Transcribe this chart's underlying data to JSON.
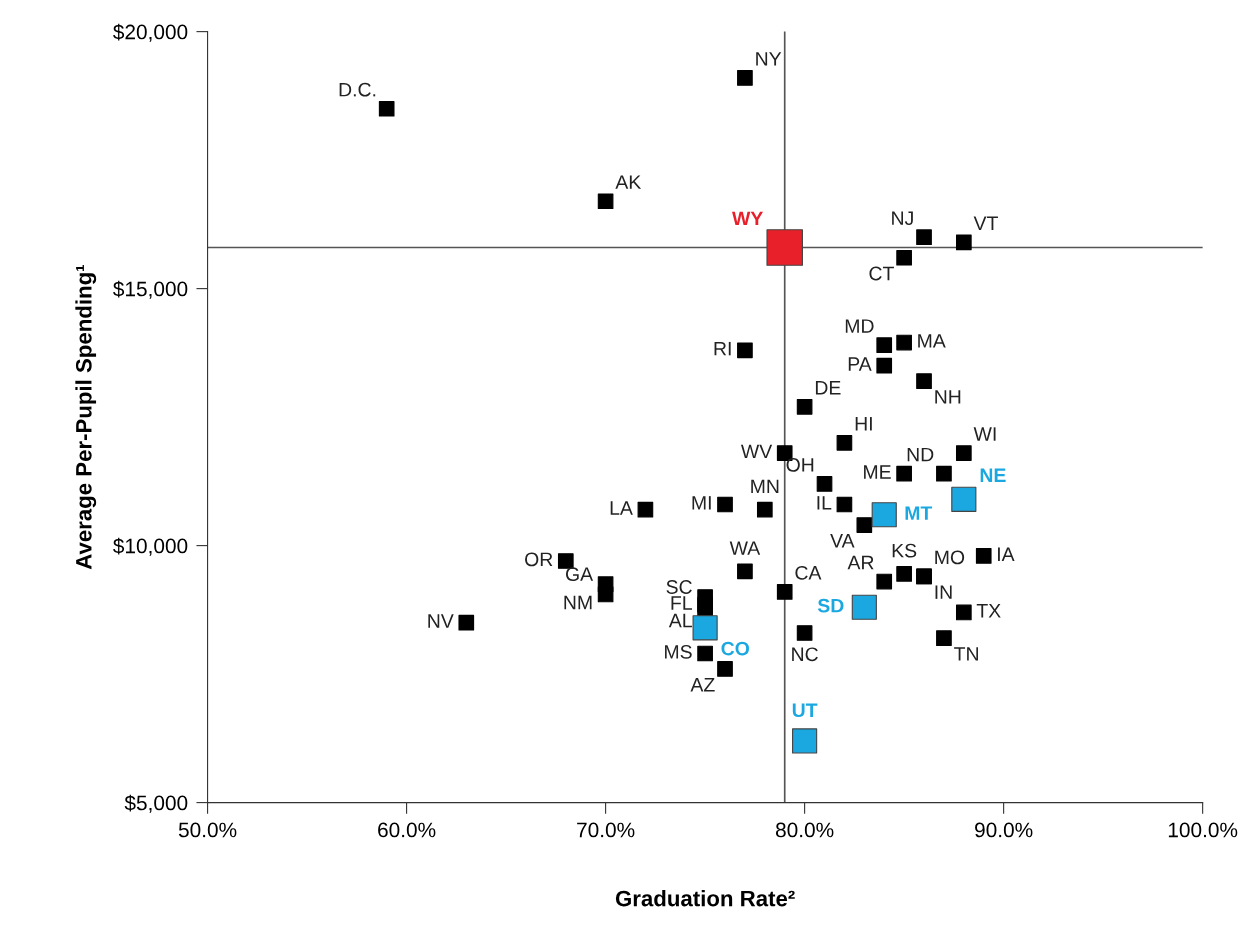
{
  "chart_data": {
    "type": "scatter",
    "xlabel": "Graduation Rate²",
    "ylabel": "Average Per-Pupil Spending¹",
    "xlim": [
      50,
      100
    ],
    "ylim": [
      5000,
      20000
    ],
    "xticks": [
      {
        "value": 50,
        "label": "50.0%"
      },
      {
        "value": 60,
        "label": "60.0%"
      },
      {
        "value": 70,
        "label": "70.0%"
      },
      {
        "value": 80,
        "label": "80.0%"
      },
      {
        "value": 90,
        "label": "90.0%"
      },
      {
        "value": 100,
        "label": "100.0%"
      }
    ],
    "yticks": [
      {
        "value": 5000,
        "label": "$5,000"
      },
      {
        "value": 10000,
        "label": "$10,000"
      },
      {
        "value": 15000,
        "label": "$15,000"
      },
      {
        "value": 20000,
        "label": "$20,000"
      }
    ],
    "grid": false,
    "marker": "square",
    "ref_lines": [
      {
        "axis": "x",
        "value": 79,
        "color": "#555555"
      },
      {
        "axis": "y",
        "value": 15800,
        "color": "#555555"
      }
    ],
    "series": [
      {
        "color": "#000000",
        "x": [
          59,
          77,
          70,
          86,
          88,
          85,
          77,
          84,
          85,
          84,
          86,
          80,
          82,
          79,
          88,
          85,
          87,
          81,
          76,
          78,
          72,
          82,
          83,
          68,
          89,
          77,
          85,
          84,
          86,
          86,
          70,
          70,
          79,
          75,
          75,
          75,
          88,
          63,
          80,
          87,
          75,
          76
        ],
        "values": [
          18500,
          19100,
          16700,
          16000,
          15900,
          15600,
          13800,
          13900,
          13950,
          13500,
          13200,
          12700,
          12000,
          11800,
          11800,
          11400,
          11400,
          11200,
          10800,
          10700,
          10700,
          10800,
          10400,
          9700,
          9800,
          9500,
          9450,
          9300,
          9400,
          9400,
          9250,
          9050,
          9100,
          9000,
          8850,
          8700,
          8700,
          8500,
          8300,
          8200,
          7900,
          7600
        ]
      },
      {
        "color": "#1ba8e0",
        "x": [
          84,
          88,
          83,
          75,
          80
        ],
        "values": [
          10600,
          10900,
          8800,
          8400,
          6200
        ]
      },
      {
        "color": "#e8202a",
        "x": [
          79
        ],
        "values": [
          15800
        ]
      }
    ],
    "annotations": [
      {
        "text": "D.C.",
        "x": 59,
        "y": 18500
      },
      {
        "text": "NY",
        "x": 77,
        "y": 19100
      },
      {
        "text": "AK",
        "x": 70,
        "y": 16700
      },
      {
        "text": "NJ",
        "x": 86,
        "y": 16000
      },
      {
        "text": "VT",
        "x": 88,
        "y": 15900
      },
      {
        "text": "CT",
        "x": 85,
        "y": 15600
      },
      {
        "text": "RI",
        "x": 77,
        "y": 13800
      },
      {
        "text": "MD",
        "x": 84,
        "y": 13900
      },
      {
        "text": "MA",
        "x": 85,
        "y": 13950
      },
      {
        "text": "PA",
        "x": 84,
        "y": 13500
      },
      {
        "text": "NH",
        "x": 86,
        "y": 13200
      },
      {
        "text": "DE",
        "x": 80,
        "y": 12700
      },
      {
        "text": "HI",
        "x": 82,
        "y": 12000
      },
      {
        "text": "WV",
        "x": 79,
        "y": 11800
      },
      {
        "text": "WI",
        "x": 88,
        "y": 11800
      },
      {
        "text": "ME",
        "x": 85,
        "y": 11400
      },
      {
        "text": "ND",
        "x": 87,
        "y": 11400
      },
      {
        "text": "OH",
        "x": 81,
        "y": 11200
      },
      {
        "text": "MI",
        "x": 76,
        "y": 10800
      },
      {
        "text": "MN",
        "x": 78,
        "y": 10700
      },
      {
        "text": "LA",
        "x": 72,
        "y": 10700
      },
      {
        "text": "IL",
        "x": 82,
        "y": 10800
      },
      {
        "text": "VA",
        "x": 83,
        "y": 10400
      },
      {
        "text": "OR",
        "x": 68,
        "y": 9700
      },
      {
        "text": "IA",
        "x": 89,
        "y": 9800
      },
      {
        "text": "WA",
        "x": 77,
        "y": 9500
      },
      {
        "text": "KS",
        "x": 85,
        "y": 9450
      },
      {
        "text": "AR",
        "x": 84,
        "y": 9300
      },
      {
        "text": "MO",
        "x": 86,
        "y": 9400
      },
      {
        "text": "IN",
        "x": 86,
        "y": 9400
      },
      {
        "text": "GA",
        "x": 70,
        "y": 9250
      },
      {
        "text": "NM",
        "x": 70,
        "y": 9050
      },
      {
        "text": "CA",
        "x": 79,
        "y": 9100
      },
      {
        "text": "SC",
        "x": 75,
        "y": 9000
      },
      {
        "text": "FL",
        "x": 75,
        "y": 8850
      },
      {
        "text": "AL",
        "x": 75,
        "y": 8700
      },
      {
        "text": "TX",
        "x": 88,
        "y": 8700
      },
      {
        "text": "NV",
        "x": 63,
        "y": 8500
      },
      {
        "text": "NC",
        "x": 80,
        "y": 8300
      },
      {
        "text": "TN",
        "x": 87,
        "y": 8200
      },
      {
        "text": "MS",
        "x": 75,
        "y": 7900
      },
      {
        "text": "AZ",
        "x": 76,
        "y": 7600
      },
      {
        "text": "MT",
        "x": 84,
        "y": 10600
      },
      {
        "text": "NE",
        "x": 88,
        "y": 10900
      },
      {
        "text": "SD",
        "x": 83,
        "y": 8800
      },
      {
        "text": "CO",
        "x": 75,
        "y": 8400
      },
      {
        "text": "UT",
        "x": 80,
        "y": 6200
      },
      {
        "text": "WY",
        "x": 79,
        "y": 15800
      }
    ]
  }
}
